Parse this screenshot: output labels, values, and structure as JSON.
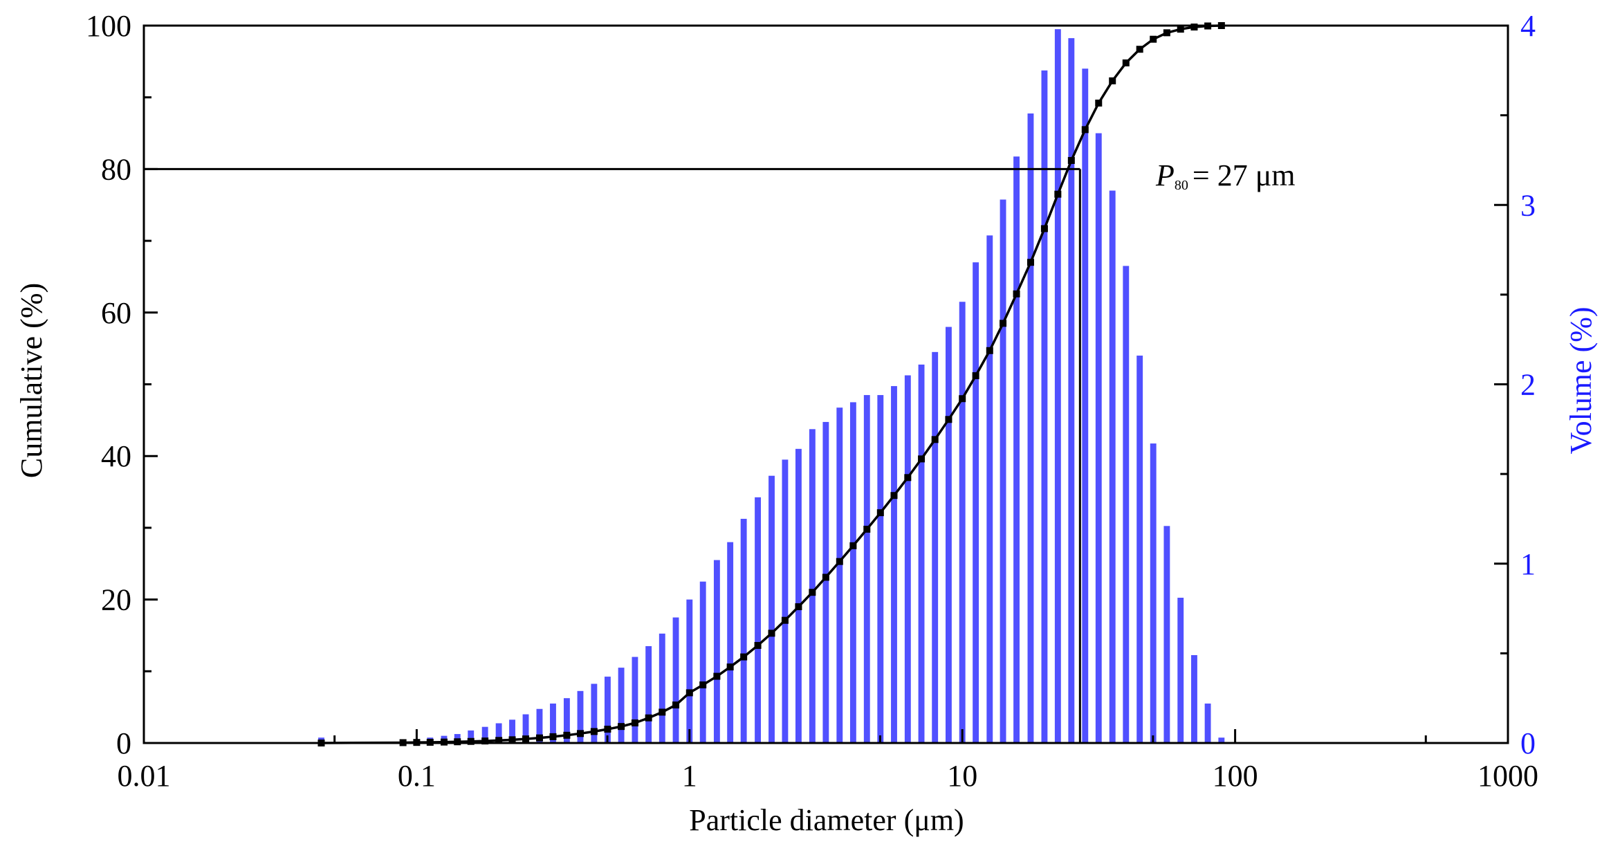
{
  "chart_data": {
    "type": "bar_line",
    "x_label": "Particle diameter (μm)",
    "y_label": "Cumulative (%)",
    "y2_label": "Volume (%)",
    "x_log": true,
    "xlim": [
      0.01,
      1000
    ],
    "xticks": [
      0.01,
      0.1,
      1,
      10,
      100,
      1000
    ],
    "xminor": [
      0.05,
      0.5,
      5,
      50,
      500
    ],
    "ylim": [
      0,
      100
    ],
    "yticks": [
      0,
      20,
      40,
      60,
      80,
      100
    ],
    "yminor": [
      10,
      30,
      50,
      70,
      90
    ],
    "y2lim": [
      0,
      4
    ],
    "y2ticks": [
      0,
      1,
      2,
      3,
      4
    ],
    "y2minor": [
      0.5,
      1.5,
      2.5,
      3.5
    ],
    "y2color": "#1a1aff",
    "x": [
      0.0447,
      0.0891,
      0.1,
      0.112,
      0.126,
      0.141,
      0.158,
      0.178,
      0.2,
      0.224,
      0.251,
      0.282,
      0.316,
      0.355,
      0.398,
      0.447,
      0.501,
      0.562,
      0.631,
      0.708,
      0.794,
      0.891,
      1,
      1.12,
      1.26,
      1.41,
      1.58,
      1.78,
      2,
      2.24,
      2.51,
      2.82,
      3.16,
      3.55,
      3.98,
      4.47,
      5.01,
      5.62,
      6.31,
      7.08,
      7.94,
      8.91,
      10,
      11.2,
      12.6,
      14.1,
      15.8,
      17.8,
      20,
      22.4,
      25.1,
      28.2,
      31.6,
      35.5,
      39.8,
      44.7,
      50.1,
      56.2,
      63.1,
      70.8,
      79.4,
      89.1
    ],
    "series": [
      {
        "color": "#5050ff",
        "axis": "y2",
        "kind": "bar",
        "values": [
          0.03,
          0.02,
          0.02,
          0.03,
          0.04,
          0.05,
          0.07,
          0.09,
          0.11,
          0.13,
          0.16,
          0.19,
          0.22,
          0.25,
          0.29,
          0.33,
          0.37,
          0.42,
          0.48,
          0.54,
          0.61,
          0.7,
          0.8,
          0.9,
          1.02,
          1.12,
          1.25,
          1.37,
          1.49,
          1.58,
          1.64,
          1.75,
          1.79,
          1.87,
          1.9,
          1.94,
          1.94,
          1.99,
          2.05,
          2.11,
          2.18,
          2.32,
          2.46,
          2.68,
          2.83,
          3.03,
          3.27,
          3.51,
          3.75,
          3.98,
          3.93,
          3.76,
          3.4,
          3.08,
          2.66,
          2.16,
          1.67,
          1.21,
          0.81,
          0.49,
          0.22,
          0.03
        ]
      },
      {
        "color": "#000000",
        "axis": "y",
        "kind": "line",
        "marker": "square",
        "values": [
          0,
          0.05,
          0.08,
          0.1,
          0.13,
          0.17,
          0.22,
          0.28,
          0.36,
          0.45,
          0.57,
          0.71,
          0.88,
          1.08,
          1.32,
          1.6,
          1.93,
          2.3,
          2.8,
          3.5,
          4.3,
          5.3,
          7.0,
          8.1,
          9.3,
          10.6,
          12.0,
          13.6,
          15.3,
          17.1,
          19.0,
          21.0,
          23.1,
          25.3,
          27.5,
          29.8,
          32.1,
          34.5,
          37.0,
          39.6,
          42.3,
          45.1,
          48.0,
          51.2,
          54.7,
          58.5,
          62.6,
          67.0,
          71.7,
          76.5,
          81.2,
          85.5,
          89.2,
          92.3,
          94.8,
          96.7,
          98.1,
          99.0,
          99.5,
          99.8,
          99.95,
          100
        ]
      }
    ],
    "p80": {
      "x": 27,
      "y": 80
    },
    "annotation": [
      "P",
      "80",
      "= 27 μm"
    ]
  }
}
